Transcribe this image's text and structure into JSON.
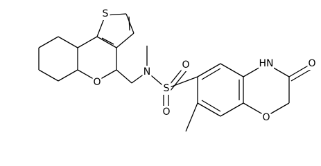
{
  "atoms": [
    {
      "label": "S"
    },
    {
      "label": "O"
    },
    {
      "label": "N"
    },
    {
      "label": "S"
    },
    {
      "label": "O"
    },
    {
      "label": "O"
    },
    {
      "label": "HN"
    },
    {
      "label": "O"
    },
    {
      "label": "O"
    }
  ]
}
